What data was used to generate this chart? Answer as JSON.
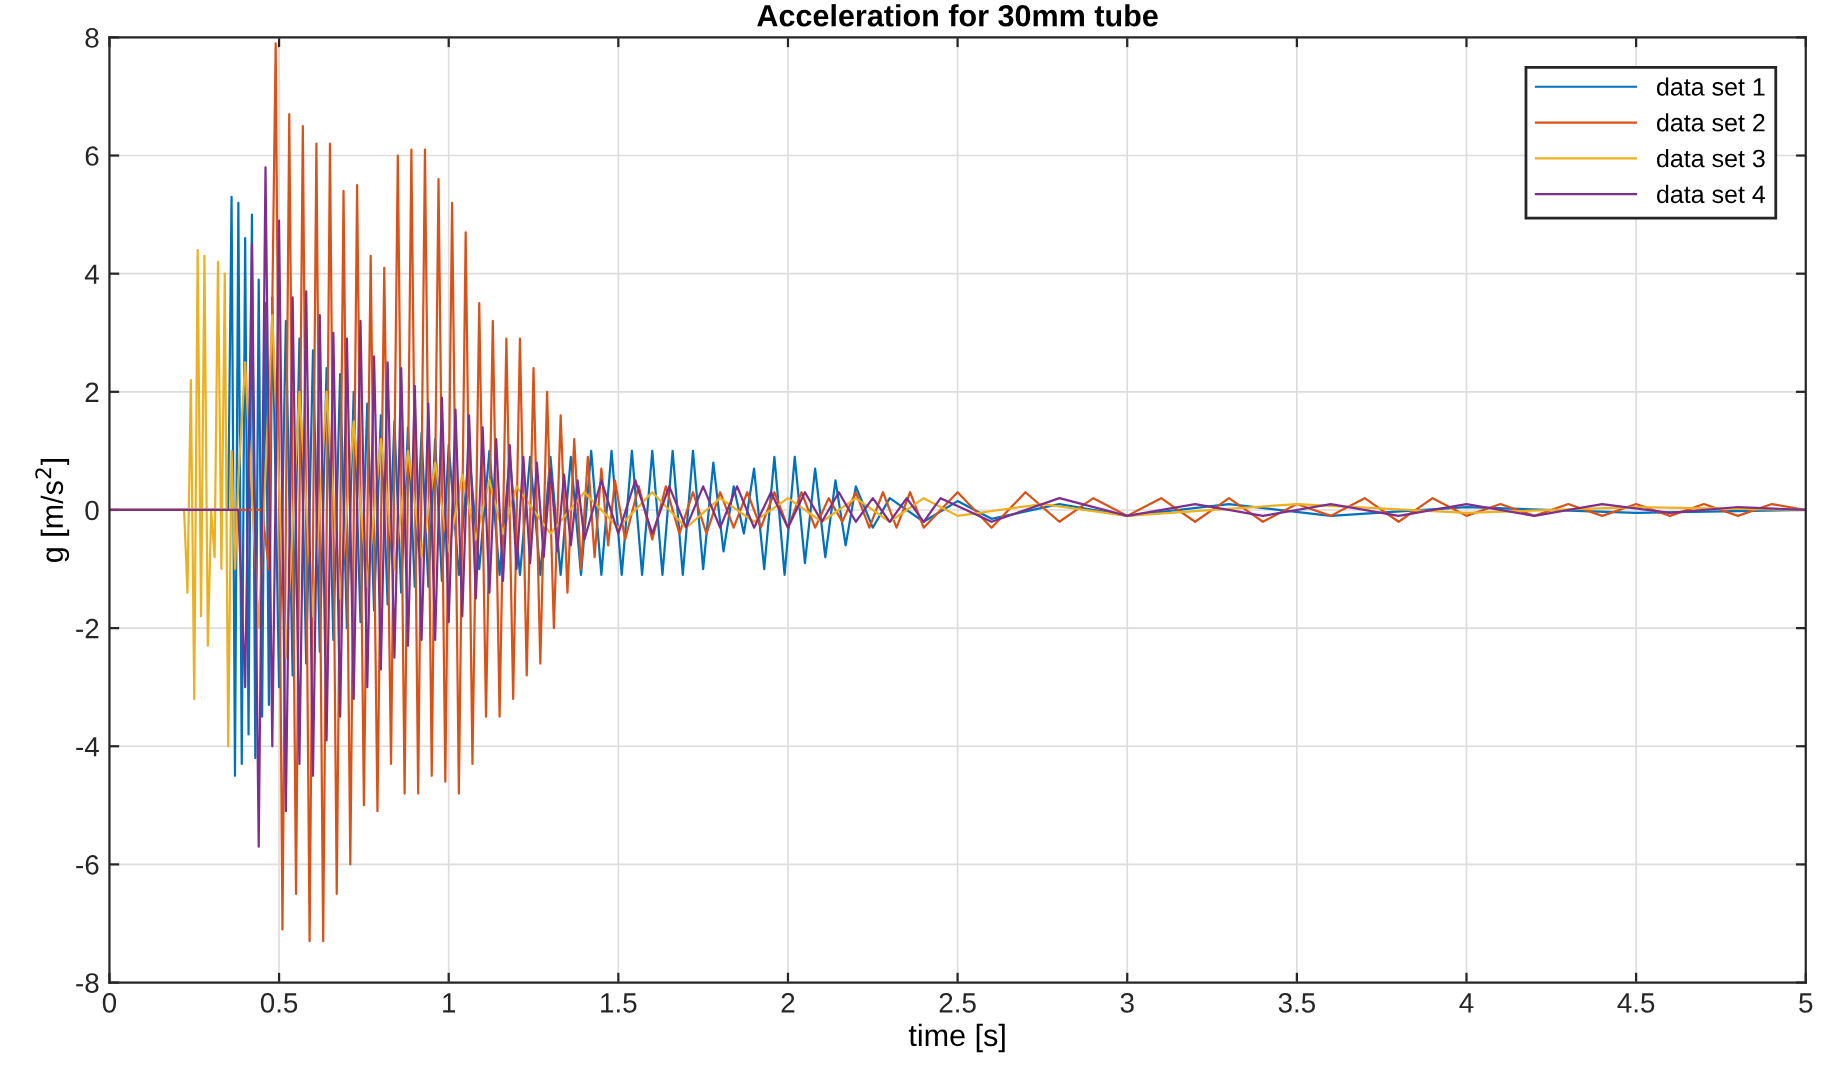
{
  "chart_data": {
    "type": "line",
    "title": "Acceleration for 30mm tube",
    "xlabel": "time [s]",
    "ylabel": "g [m/s$^{2}$]",
    "xlim": [
      0,
      5
    ],
    "xticks": [
      0,
      0.5,
      1,
      1.5,
      2,
      2.5,
      3,
      3.5,
      4,
      4.5,
      5
    ],
    "ylim": [
      -8,
      8
    ],
    "yticks": [
      -8,
      -6,
      -4,
      -2,
      0,
      2,
      4,
      6,
      8
    ],
    "grid": true,
    "legend": "top right",
    "line_style": "solid",
    "marker": "none",
    "series": [
      {
        "name": "data set 1",
        "color": "#0072bd",
        "x": [
          0,
          0.35,
          0.36,
          0.37,
          0.38,
          0.39,
          0.4,
          0.41,
          0.42,
          0.43,
          0.44,
          0.45,
          0.46,
          0.47,
          0.48,
          0.5,
          0.52,
          0.54,
          0.56,
          0.58,
          0.6,
          0.62,
          0.64,
          0.66,
          0.68,
          0.7,
          0.72,
          0.74,
          0.76,
          0.78,
          0.8,
          0.82,
          0.84,
          0.86,
          0.88,
          0.9,
          0.92,
          0.94,
          0.96,
          0.98,
          1.0,
          1.03,
          1.06,
          1.09,
          1.12,
          1.15,
          1.18,
          1.21,
          1.24,
          1.27,
          1.3,
          1.33,
          1.36,
          1.39,
          1.42,
          1.45,
          1.48,
          1.51,
          1.54,
          1.57,
          1.6,
          1.63,
          1.66,
          1.69,
          1.72,
          1.75,
          1.78,
          1.81,
          1.84,
          1.87,
          1.9,
          1.93,
          1.96,
          1.99,
          2.02,
          2.05,
          2.08,
          2.11,
          2.14,
          2.17,
          2.2,
          2.25,
          2.3,
          2.4,
          2.5,
          2.6,
          2.8,
          3.0,
          3.3,
          3.6,
          4.0,
          4.5,
          5.0
        ],
        "values": [
          0,
          0,
          5.3,
          -4.5,
          5.2,
          -4.3,
          4.6,
          -3.8,
          5.0,
          -4.2,
          3.9,
          -3.5,
          3.5,
          -3.3,
          3.6,
          -3.0,
          3.2,
          -2.8,
          2.9,
          -2.6,
          2.7,
          -2.4,
          2.4,
          -2.2,
          2.3,
          -2.0,
          2.0,
          -1.9,
          1.8,
          -1.7,
          1.6,
          -1.6,
          1.5,
          -1.4,
          1.4,
          -1.3,
          1.3,
          -1.3,
          1.2,
          -1.2,
          1.1,
          -1.1,
          1.0,
          -1.0,
          1.0,
          -1.1,
          0.9,
          -1.1,
          0.9,
          -1.1,
          0.9,
          -1.1,
          0.9,
          -1.1,
          1.0,
          -1.1,
          1.0,
          -1.1,
          1.0,
          -1.1,
          1.0,
          -1.1,
          1.0,
          -1.1,
          1.0,
          -1.0,
          0.8,
          -0.7,
          0.4,
          -0.4,
          0.7,
          -1.0,
          0.9,
          -1.1,
          0.9,
          -0.9,
          0.7,
          -0.8,
          0.5,
          -0.6,
          0.4,
          -0.3,
          0.2,
          -0.2,
          0.15,
          -0.15,
          0.1,
          -0.1,
          0.1,
          -0.1,
          0.05,
          -0.05,
          0
        ]
      },
      {
        "name": "data set 2",
        "color": "#d95319",
        "x": [
          0,
          0.45,
          0.47,
          0.49,
          0.51,
          0.53,
          0.55,
          0.57,
          0.59,
          0.61,
          0.63,
          0.65,
          0.67,
          0.69,
          0.71,
          0.73,
          0.75,
          0.77,
          0.79,
          0.81,
          0.83,
          0.85,
          0.87,
          0.89,
          0.91,
          0.93,
          0.95,
          0.97,
          0.99,
          1.01,
          1.03,
          1.05,
          1.07,
          1.09,
          1.11,
          1.13,
          1.15,
          1.17,
          1.19,
          1.21,
          1.23,
          1.25,
          1.27,
          1.29,
          1.31,
          1.33,
          1.35,
          1.37,
          1.39,
          1.41,
          1.43,
          1.45,
          1.47,
          1.49,
          1.52,
          1.56,
          1.6,
          1.64,
          1.68,
          1.72,
          1.76,
          1.8,
          1.84,
          1.88,
          1.92,
          1.96,
          2.0,
          2.04,
          2.08,
          2.12,
          2.16,
          2.2,
          2.24,
          2.28,
          2.32,
          2.36,
          2.4,
          2.5,
          2.6,
          2.7,
          2.8,
          2.9,
          3.0,
          3.1,
          3.2,
          3.3,
          3.4,
          3.5,
          3.6,
          3.7,
          3.8,
          3.9,
          4.0,
          4.1,
          4.2,
          4.3,
          4.4,
          4.5,
          4.6,
          4.7,
          4.8,
          4.9,
          5.0
        ],
        "values": [
          0,
          0,
          -1.0,
          7.9,
          -7.1,
          6.7,
          -6.5,
          6.5,
          -7.3,
          6.2,
          -7.3,
          6.2,
          -6.5,
          5.4,
          -6.0,
          5.5,
          -5.0,
          4.3,
          -5.1,
          4.1,
          -4.3,
          6.0,
          -4.8,
          6.1,
          -4.8,
          6.1,
          -4.5,
          5.6,
          -4.6,
          5.2,
          -4.8,
          4.7,
          -4.3,
          3.5,
          -3.5,
          3.2,
          -3.5,
          2.9,
          -3.2,
          2.9,
          -2.8,
          2.4,
          -2.6,
          2.0,
          -2.0,
          1.6,
          -1.4,
          1.2,
          -1.0,
          0.9,
          -0.8,
          0.7,
          -0.6,
          0.5,
          -0.5,
          0.4,
          -0.5,
          0.4,
          -0.4,
          0.3,
          -0.4,
          0.3,
          -0.3,
          0.3,
          -0.3,
          0.3,
          -0.3,
          0.3,
          -0.3,
          0.2,
          -0.2,
          0.3,
          -0.3,
          0.3,
          -0.3,
          0.3,
          -0.3,
          0.3,
          -0.3,
          0.3,
          -0.2,
          0.2,
          -0.1,
          0.2,
          -0.2,
          0.2,
          -0.2,
          0.1,
          -0.1,
          0.2,
          -0.2,
          0.2,
          -0.1,
          0.1,
          -0.1,
          0.1,
          -0.1,
          0.1,
          -0.1,
          0.1,
          -0.1,
          0.1,
          0
        ]
      },
      {
        "name": "data set 3",
        "color": "#edb120",
        "x": [
          0,
          0.22,
          0.23,
          0.24,
          0.25,
          0.26,
          0.27,
          0.28,
          0.29,
          0.3,
          0.31,
          0.32,
          0.33,
          0.34,
          0.35,
          0.36,
          0.37,
          0.38,
          0.4,
          0.44,
          0.48,
          0.52,
          0.56,
          0.6,
          0.64,
          0.68,
          0.72,
          0.76,
          0.8,
          0.84,
          0.88,
          0.92,
          0.96,
          1.0,
          1.04,
          1.08,
          1.12,
          1.16,
          1.2,
          1.3,
          1.4,
          1.5,
          1.6,
          1.7,
          1.8,
          1.9,
          2.0,
          2.1,
          2.2,
          2.3,
          2.4,
          2.5,
          2.75,
          3,
          3.5,
          4,
          4.5,
          5
        ],
        "values": [
          0,
          0,
          -1.4,
          2.2,
          -3.2,
          4.4,
          -1.8,
          4.3,
          -2.3,
          0.0,
          -0.8,
          4.2,
          -1.0,
          4.0,
          -4.0,
          1.0,
          -1.0,
          0.5,
          2.5,
          -2.0,
          3.3,
          -2.5,
          2.0,
          -1.8,
          2.0,
          -1.5,
          1.5,
          -1.3,
          1.2,
          -1.0,
          1.0,
          -0.8,
          0.8,
          -0.7,
          0.6,
          -0.5,
          0.5,
          -0.4,
          0.4,
          -0.4,
          0.3,
          -0.3,
          0.3,
          -0.3,
          0.2,
          -0.2,
          0.2,
          -0.2,
          0.2,
          -0.2,
          0.2,
          -0.1,
          0.1,
          -0.1,
          0.1,
          -0.05,
          0.05,
          0
        ]
      },
      {
        "name": "data set 4",
        "color": "#7e2f8e",
        "x": [
          0,
          0.38,
          0.4,
          0.42,
          0.44,
          0.46,
          0.48,
          0.5,
          0.52,
          0.54,
          0.56,
          0.58,
          0.6,
          0.62,
          0.64,
          0.66,
          0.68,
          0.7,
          0.72,
          0.74,
          0.76,
          0.78,
          0.8,
          0.82,
          0.84,
          0.86,
          0.88,
          0.9,
          0.92,
          0.94,
          0.96,
          0.98,
          1.0,
          1.02,
          1.04,
          1.06,
          1.08,
          1.1,
          1.12,
          1.14,
          1.16,
          1.18,
          1.2,
          1.22,
          1.24,
          1.26,
          1.28,
          1.3,
          1.32,
          1.34,
          1.36,
          1.38,
          1.4,
          1.45,
          1.5,
          1.55,
          1.6,
          1.65,
          1.7,
          1.75,
          1.8,
          1.85,
          1.9,
          1.95,
          2.0,
          2.05,
          2.1,
          2.15,
          2.2,
          2.25,
          2.3,
          2.35,
          2.4,
          2.45,
          2.6,
          2.8,
          3.0,
          3.2,
          3.4,
          3.6,
          3.8,
          4.0,
          4.2,
          4.4,
          4.6,
          4.8,
          5.0
        ],
        "values": [
          0,
          0,
          -3.0,
          4.5,
          -5.7,
          5.8,
          -4.0,
          4.9,
          -5.1,
          3.6,
          -4.3,
          3.7,
          -4.5,
          3.3,
          -3.9,
          3.0,
          -3.5,
          2.9,
          -3.2,
          3.2,
          -3.0,
          2.6,
          -2.7,
          2.5,
          -2.5,
          2.4,
          -2.3,
          2.1,
          -2.2,
          1.8,
          -2.2,
          1.9,
          -1.9,
          1.7,
          -1.8,
          1.6,
          -1.5,
          1.4,
          -1.4,
          1.2,
          -1.2,
          1.1,
          -1.0,
          0.9,
          -0.9,
          0.8,
          -0.8,
          0.7,
          -0.7,
          0.6,
          -0.6,
          0.5,
          -0.5,
          0.5,
          -0.4,
          0.5,
          -0.4,
          0.4,
          -0.3,
          0.4,
          -0.3,
          0.4,
          -0.3,
          0.3,
          -0.3,
          0.3,
          -0.2,
          0.3,
          -0.2,
          0.2,
          -0.2,
          0.2,
          -0.2,
          0.2,
          -0.2,
          0.2,
          -0.1,
          0.1,
          -0.1,
          0.1,
          -0.1,
          0.1,
          -0.1,
          0.1,
          -0.05,
          0.05,
          0
        ]
      }
    ]
  }
}
